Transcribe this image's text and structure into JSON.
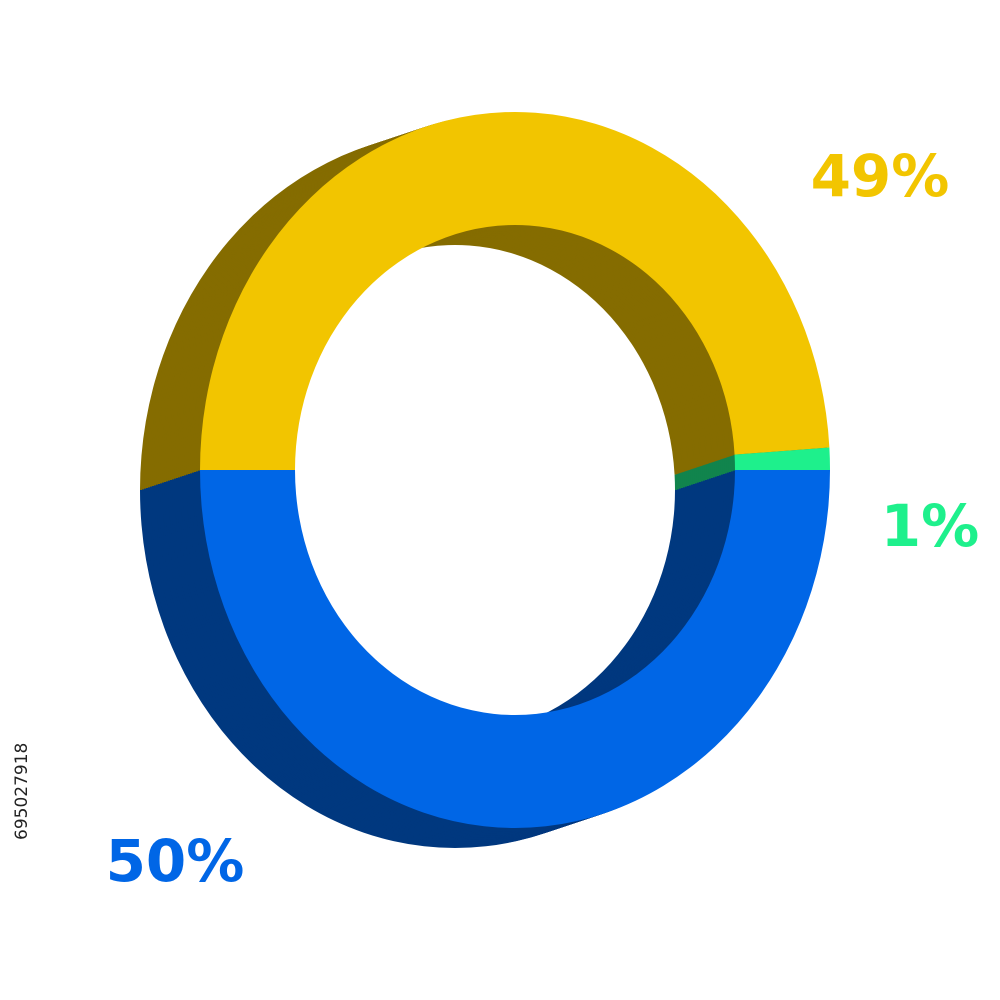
{
  "chart_data": {
    "type": "donut3d",
    "categories": [
      "49%",
      "1%",
      "50%"
    ],
    "values": [
      49,
      1,
      50
    ],
    "value_labels": [
      "49%",
      "1%",
      "50%"
    ],
    "colors": [
      "#f2c500",
      "#1ef08c",
      "#0066e6"
    ]
  },
  "image_id": "695027918"
}
